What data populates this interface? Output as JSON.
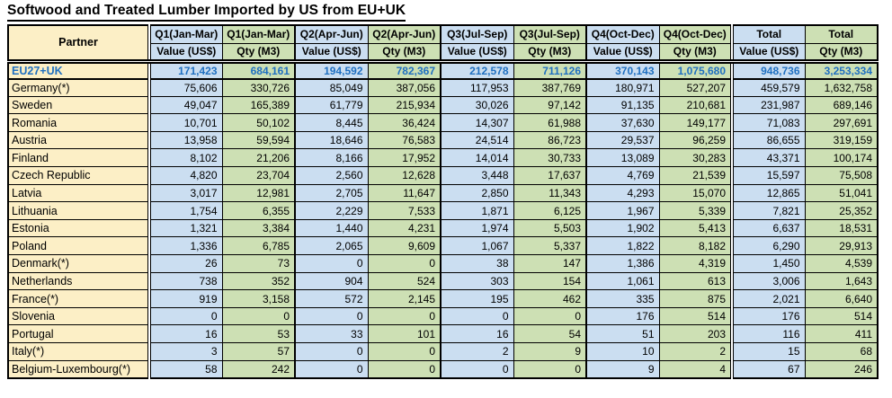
{
  "title": "Softwood and Treated Lumber Imported by US from EU+UK",
  "colors": {
    "partner_fill": "#FCEFC6",
    "value_fill": "#CBDEF1",
    "qty_fill": "#CDE0B4",
    "emphasis_text": "#1F6FC0",
    "border": "#000000"
  },
  "chart_data": {
    "type": "table",
    "title": "Softwood and Treated Lumber Imported by US from EU+UK",
    "partner_header": "Partner",
    "column_groups": [
      "Q1(Jan-Mar)",
      "Q2(Apr-Jun)",
      "Q3(Jul-Sep)",
      "Q4(Oct-Dec)",
      "Total"
    ],
    "subheaders": [
      "Value (US$)",
      "Qty (M3)"
    ],
    "rows": [
      {
        "partner": "EU27+UK",
        "emphasis": true,
        "values": [
          171423,
          684161,
          194592,
          782367,
          212578,
          711126,
          370143,
          1075680,
          948736,
          3253334
        ]
      },
      {
        "partner": "Germany(*)",
        "values": [
          75606,
          330726,
          85049,
          387056,
          117953,
          387769,
          180971,
          527207,
          459579,
          1632758
        ]
      },
      {
        "partner": "Sweden",
        "values": [
          49047,
          165389,
          61779,
          215934,
          30026,
          97142,
          91135,
          210681,
          231987,
          689146
        ]
      },
      {
        "partner": "Romania",
        "values": [
          10701,
          50102,
          8445,
          36424,
          14307,
          61988,
          37630,
          149177,
          71083,
          297691
        ]
      },
      {
        "partner": "Austria",
        "values": [
          13958,
          59594,
          18646,
          76583,
          24514,
          86723,
          29537,
          96259,
          86655,
          319159
        ]
      },
      {
        "partner": "Finland",
        "values": [
          8102,
          21206,
          8166,
          17952,
          14014,
          30733,
          13089,
          30283,
          43371,
          100174
        ]
      },
      {
        "partner": "Czech Republic",
        "values": [
          4820,
          23704,
          2560,
          12628,
          3448,
          17637,
          4769,
          21539,
          15597,
          75508
        ]
      },
      {
        "partner": "Latvia",
        "values": [
          3017,
          12981,
          2705,
          11647,
          2850,
          11343,
          4293,
          15070,
          12865,
          51041
        ]
      },
      {
        "partner": "Lithuania",
        "values": [
          1754,
          6355,
          2229,
          7533,
          1871,
          6125,
          1967,
          5339,
          7821,
          25352
        ]
      },
      {
        "partner": "Estonia",
        "values": [
          1321,
          3384,
          1440,
          4231,
          1974,
          5503,
          1902,
          5413,
          6637,
          18531
        ]
      },
      {
        "partner": "Poland",
        "values": [
          1336,
          6785,
          2065,
          9609,
          1067,
          5337,
          1822,
          8182,
          6290,
          29913
        ]
      },
      {
        "partner": "Denmark(*)",
        "values": [
          26,
          73,
          0,
          0,
          38,
          147,
          1386,
          4319,
          1450,
          4539
        ]
      },
      {
        "partner": "Netherlands",
        "values": [
          738,
          352,
          904,
          524,
          303,
          154,
          1061,
          613,
          3006,
          1643
        ]
      },
      {
        "partner": "France(*)",
        "values": [
          919,
          3158,
          572,
          2145,
          195,
          462,
          335,
          875,
          2021,
          6640
        ]
      },
      {
        "partner": "Slovenia",
        "values": [
          0,
          0,
          0,
          0,
          0,
          0,
          176,
          514,
          176,
          514
        ]
      },
      {
        "partner": "Portugal",
        "values": [
          16,
          53,
          33,
          101,
          16,
          54,
          51,
          203,
          116,
          411
        ]
      },
      {
        "partner": "Italy(*)",
        "values": [
          3,
          57,
          0,
          0,
          2,
          9,
          10,
          2,
          15,
          68
        ]
      },
      {
        "partner": "Belgium-Luxembourg(*)",
        "values": [
          58,
          242,
          0,
          0,
          0,
          0,
          9,
          4,
          67,
          246
        ]
      }
    ]
  }
}
